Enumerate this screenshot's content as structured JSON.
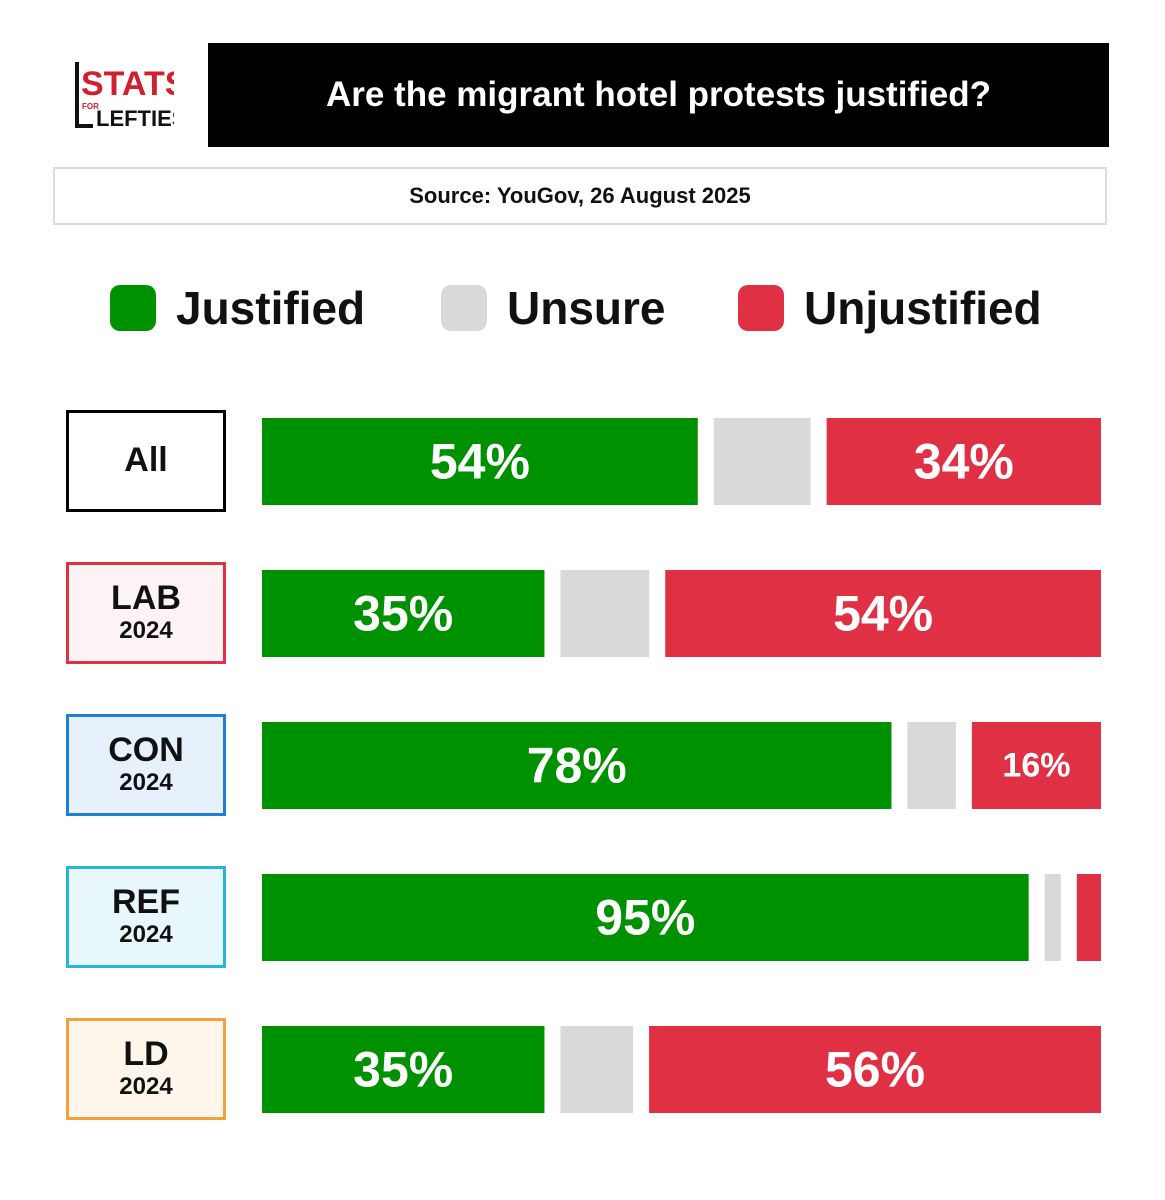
{
  "logo": {
    "line1": "STATS",
    "small": "FOR",
    "line2": "LEFTIES"
  },
  "chart_data": {
    "type": "bar",
    "stacked": true,
    "orientation": "horizontal",
    "title": "Are the migrant hotel protests justified?",
    "subtitle": "Source: YouGov, 26 August 2025",
    "legend_position": "top",
    "categories": [
      {
        "name": "All",
        "year": ""
      },
      {
        "name": "LAB",
        "year": "2024"
      },
      {
        "name": "CON",
        "year": "2024"
      },
      {
        "name": "REF",
        "year": "2024"
      },
      {
        "name": "LD",
        "year": "2024"
      }
    ],
    "series": [
      {
        "name": "Justified",
        "color": "#009100",
        "values": [
          54,
          35,
          78,
          95,
          35
        ],
        "labels": [
          "54%",
          "35%",
          "78%",
          "95%",
          "35%"
        ]
      },
      {
        "name": "Unsure",
        "color": "#d9d9d9",
        "values": [
          12,
          11,
          6,
          2,
          9
        ],
        "labels": [
          "",
          "",
          "",
          "",
          ""
        ]
      },
      {
        "name": "Unjustified",
        "color": "#e03044",
        "values": [
          34,
          54,
          16,
          3,
          56
        ],
        "labels": [
          "34%",
          "54%",
          "16%",
          "",
          "56%"
        ]
      }
    ],
    "label_colors": [
      {
        "border": "#000000",
        "fill": "#ffffff"
      },
      {
        "border": "#e03044",
        "fill": "#fdf3f4"
      },
      {
        "border": "#1e7fd4",
        "fill": "#e6f1fb"
      },
      {
        "border": "#27b5d6",
        "fill": "#e8f7fb"
      },
      {
        "border": "#f2a23a",
        "fill": "#fef6ea"
      }
    ]
  }
}
